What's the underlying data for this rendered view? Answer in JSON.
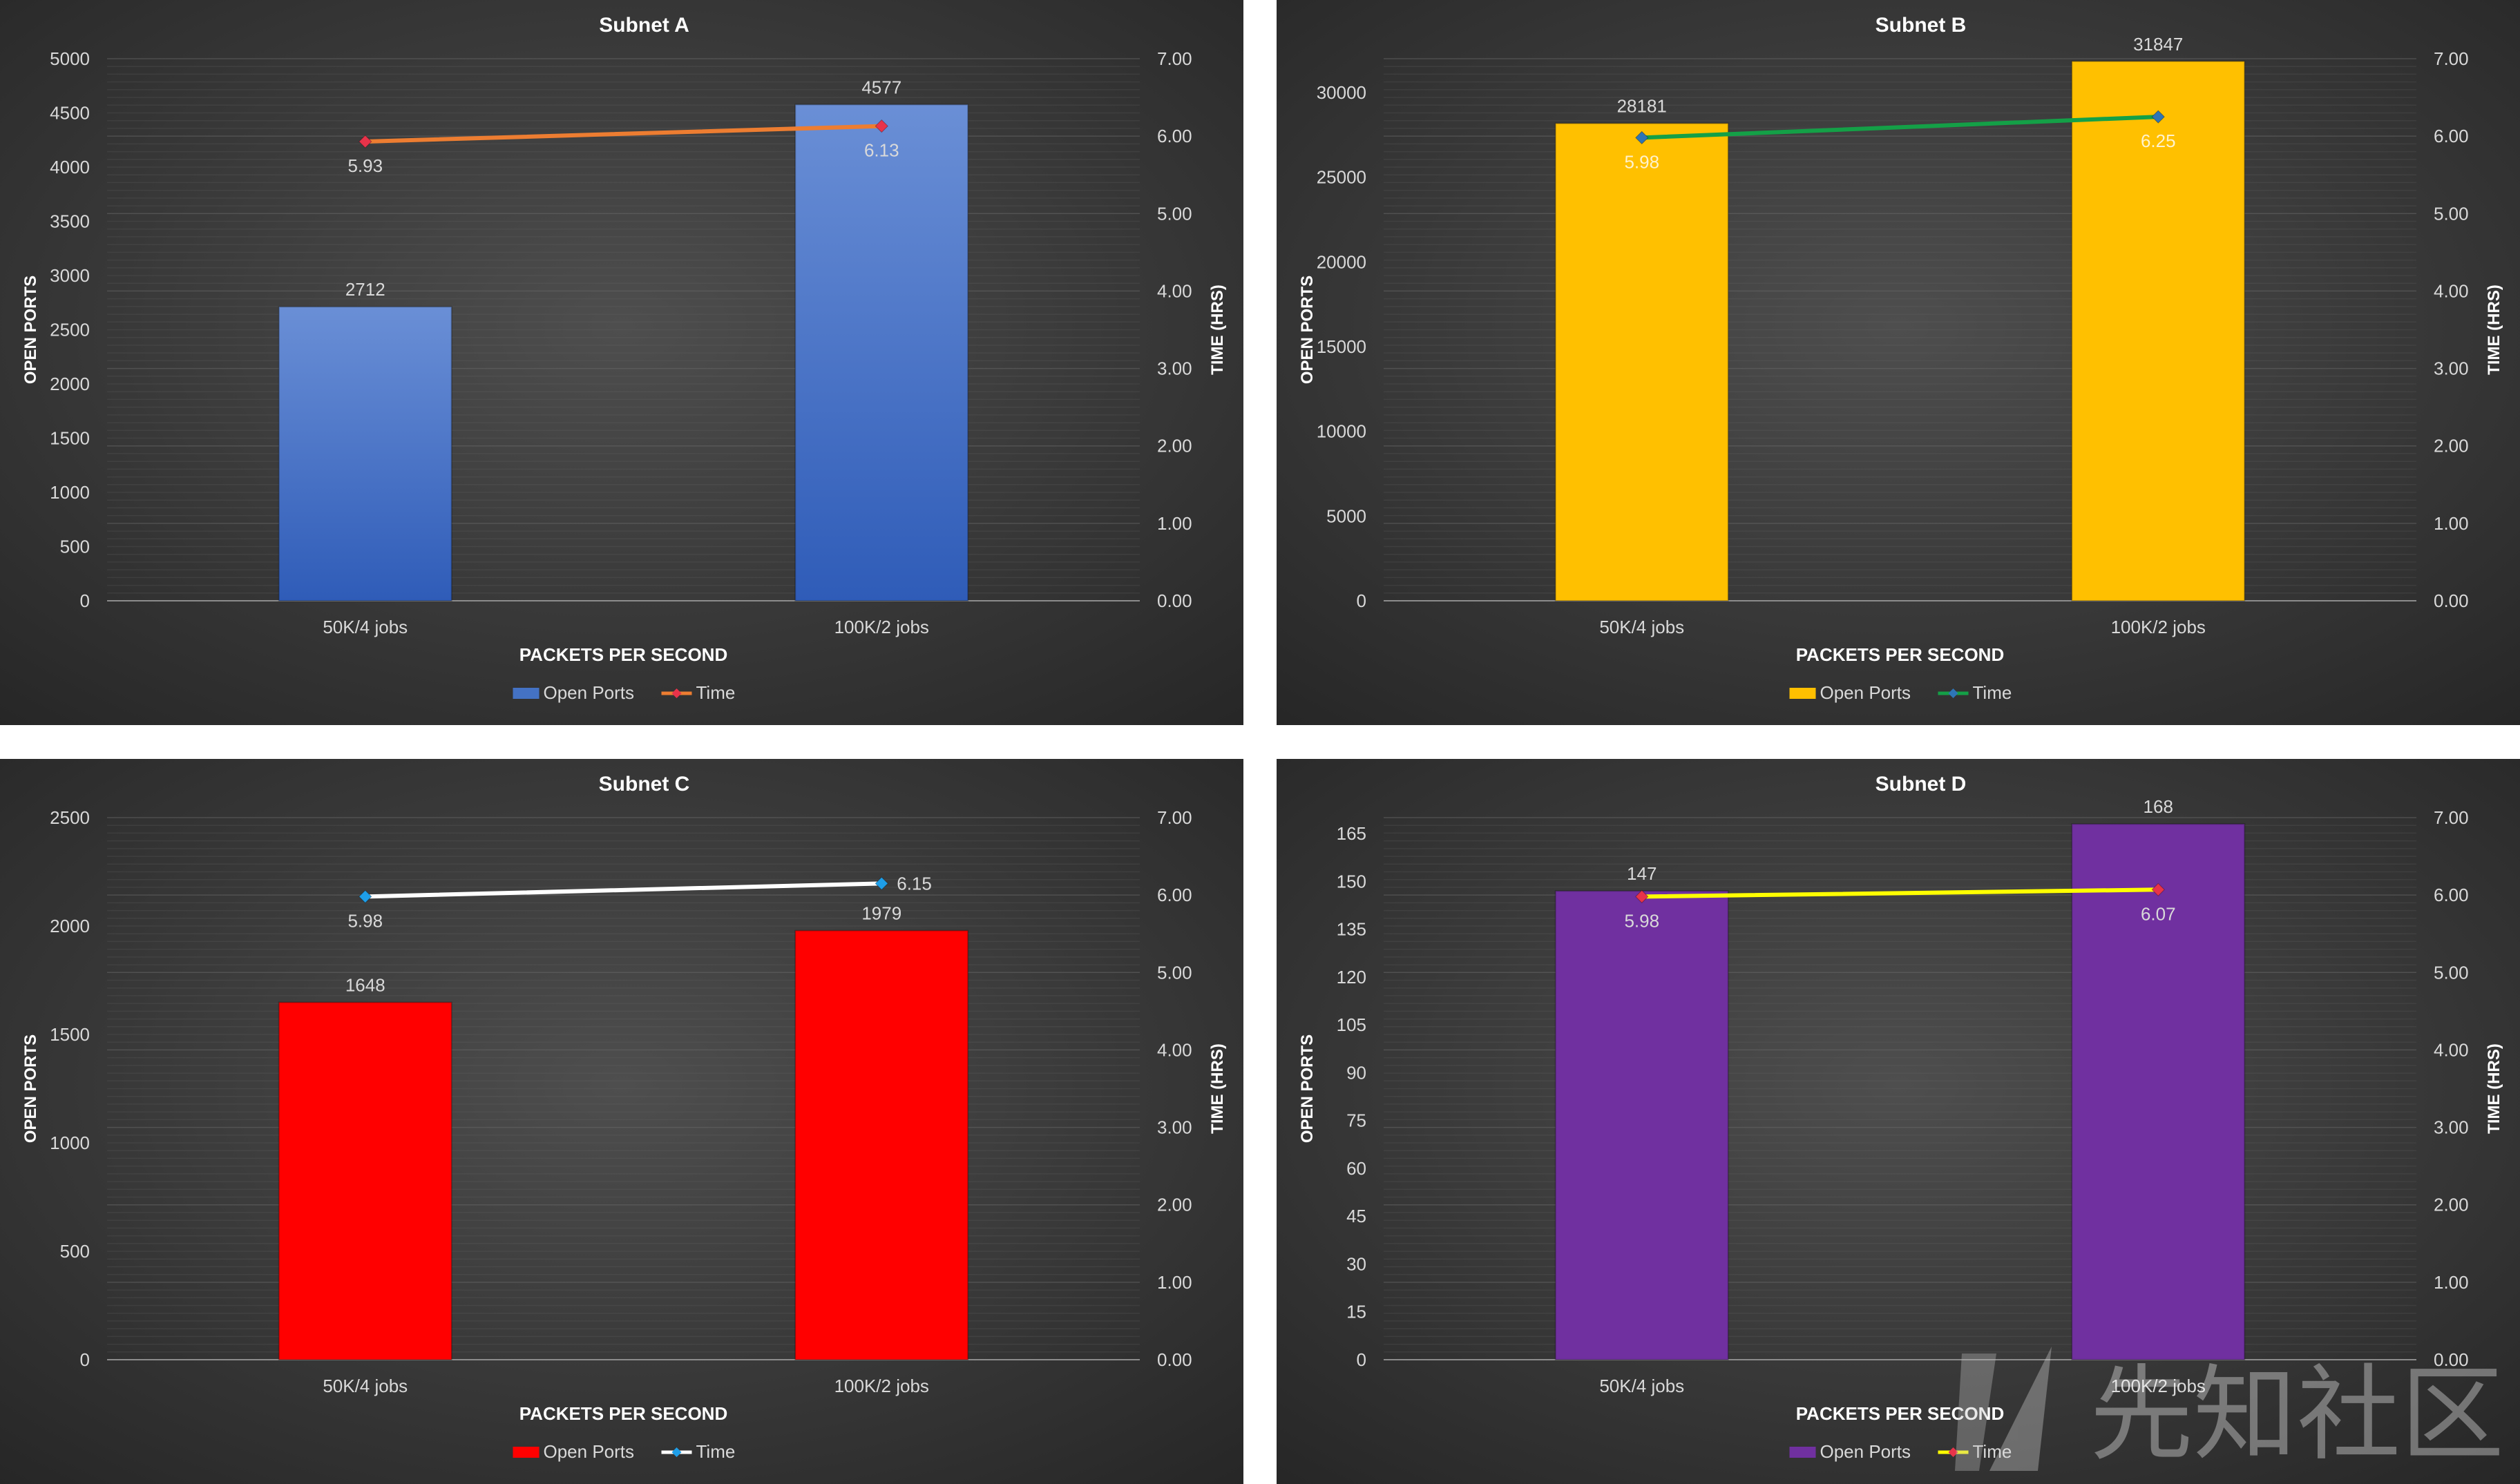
{
  "chart_data": [
    {
      "type": "bar+line",
      "title": "Subnet A",
      "xlabel": "PACKETS PER SECOND",
      "ylabel": "OPEN PORTS",
      "y2label": "TIME (HRS)",
      "categories": [
        "50K/4 jobs",
        "100K/2 jobs"
      ],
      "series": [
        {
          "name": "Open Ports",
          "type": "bar",
          "axis": "left",
          "values": [
            2712,
            4577
          ]
        },
        {
          "name": "Time",
          "type": "line",
          "axis": "right",
          "values": [
            5.93,
            6.13
          ]
        }
      ],
      "ylim": [
        0,
        5000
      ],
      "yticks": [
        0,
        500,
        1000,
        1500,
        2000,
        2500,
        3000,
        3500,
        4000,
        4500,
        5000
      ],
      "y2lim": [
        0,
        7
      ],
      "y2ticks": [
        "0.00",
        "1.00",
        "2.00",
        "3.00",
        "4.00",
        "5.00",
        "6.00",
        "7.00"
      ],
      "line_value_labels": [
        "5.93",
        "6.13"
      ],
      "line_label_position": [
        "below",
        "below"
      ],
      "colors": {
        "bar": "#4472c4",
        "bar_light": "#6a8fd6",
        "bar_dark": "#2f5cb8",
        "line": "#ed7d31",
        "marker": "#e8334a",
        "line_label": "#d9d9d9"
      },
      "legend": "bottom",
      "grid": true
    },
    {
      "type": "bar+line",
      "title": "Subnet B",
      "xlabel": "PACKETS PER SECOND",
      "ylabel": "OPEN PORTS",
      "y2label": "TIME (HRS)",
      "categories": [
        "50K/4 jobs",
        "100K/2 jobs"
      ],
      "series": [
        {
          "name": "Open Ports",
          "type": "bar",
          "axis": "left",
          "values": [
            28181,
            31847
          ]
        },
        {
          "name": "Time",
          "type": "line",
          "axis": "right",
          "values": [
            5.98,
            6.25
          ]
        }
      ],
      "ylim": [
        0,
        32000
      ],
      "yticks": [
        0,
        5000,
        10000,
        15000,
        20000,
        25000,
        30000
      ],
      "y2lim": [
        0,
        7
      ],
      "y2ticks": [
        "0.00",
        "1.00",
        "2.00",
        "3.00",
        "4.00",
        "5.00",
        "6.00",
        "7.00"
      ],
      "line_value_labels": [
        "5.98",
        "6.25"
      ],
      "line_label_position": [
        "below",
        "below"
      ],
      "colors": {
        "bar": "#ffc000",
        "bar_light": "#ffc000",
        "bar_dark": "#ffc000",
        "line": "#14a047",
        "marker": "#2e75b6",
        "line_label": "#fff2cc"
      },
      "legend": "bottom",
      "grid": true
    },
    {
      "type": "bar+line",
      "title": "Subnet C",
      "xlabel": "PACKETS PER SECOND",
      "ylabel": "OPEN PORTS",
      "y2label": "TIME (HRS)",
      "categories": [
        "50K/4 jobs",
        "100K/2 jobs"
      ],
      "series": [
        {
          "name": "Open Ports",
          "type": "bar",
          "axis": "left",
          "values": [
            1648,
            1979
          ]
        },
        {
          "name": "Time",
          "type": "line",
          "axis": "right",
          "values": [
            5.98,
            6.15
          ]
        }
      ],
      "ylim": [
        0,
        2500
      ],
      "yticks": [
        0,
        500,
        1000,
        1500,
        2000,
        2500
      ],
      "y2lim": [
        0,
        7
      ],
      "y2ticks": [
        "0.00",
        "1.00",
        "2.00",
        "3.00",
        "4.00",
        "5.00",
        "6.00",
        "7.00"
      ],
      "line_value_labels": [
        "5.98",
        "6.15"
      ],
      "line_label_position": [
        "below",
        "right"
      ],
      "colors": {
        "bar": "#ff0000",
        "bar_light": "#ff0000",
        "bar_dark": "#ff0000",
        "line": "#ffffff",
        "marker": "#1e9ee8",
        "line_label": "#d9d9d9"
      },
      "legend": "bottom",
      "grid": true
    },
    {
      "type": "bar+line",
      "title": "Subnet D",
      "xlabel": "PACKETS PER SECOND",
      "ylabel": "OPEN PORTS",
      "y2label": "TIME (HRS)",
      "categories": [
        "50K/4 jobs",
        "100K/2 jobs"
      ],
      "series": [
        {
          "name": "Open Ports",
          "type": "bar",
          "axis": "left",
          "values": [
            147,
            168
          ]
        },
        {
          "name": "Time",
          "type": "line",
          "axis": "right",
          "values": [
            5.98,
            6.07
          ]
        }
      ],
      "ylim": [
        0,
        170
      ],
      "yticks": [
        0,
        15,
        30,
        45,
        60,
        75,
        90,
        105,
        120,
        135,
        150,
        165
      ],
      "y2lim": [
        0,
        7
      ],
      "y2ticks": [
        "0.00",
        "1.00",
        "2.00",
        "3.00",
        "4.00",
        "5.00",
        "6.00",
        "7.00"
      ],
      "line_value_labels": [
        "5.98",
        "6.07"
      ],
      "line_label_position": [
        "below",
        "below"
      ],
      "colors": {
        "bar": "#7030a0",
        "bar_light": "#7030a0",
        "bar_dark": "#7030a0",
        "line": "#ffff00",
        "marker": "#e8334a",
        "line_label": "#d9d9d9"
      },
      "legend": "bottom",
      "grid": true
    }
  ],
  "watermark": {
    "text": "先知社区",
    "icon": "xianzhi-logo-icon"
  }
}
